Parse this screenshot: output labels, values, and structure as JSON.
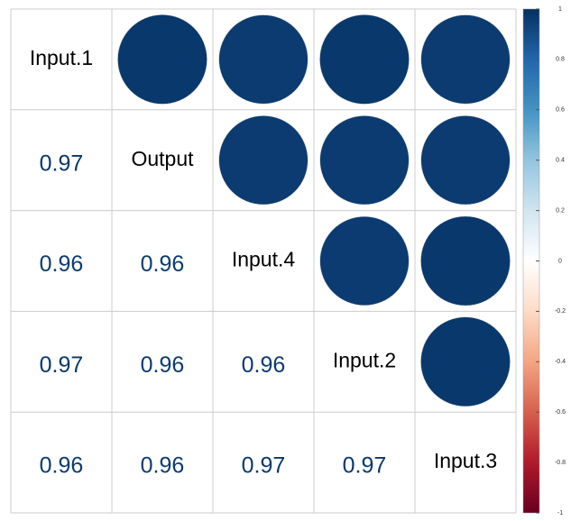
{
  "chart_data": {
    "type": "corrplot",
    "variables": [
      "Input.1",
      "Output",
      "Input.4",
      "Input.2",
      "Input.3"
    ],
    "values": [
      [
        0.97
      ],
      [
        0.96,
        0.96
      ],
      [
        0.97,
        0.96,
        0.96
      ],
      [
        0.96,
        0.96,
        0.97,
        0.97
      ]
    ],
    "colorscale": [
      "#67001F",
      "#B2182B",
      "#D6604D",
      "#F4A582",
      "#FDDBC7",
      "#FFFFFF",
      "#D1E5F0",
      "#92C5DE",
      "#4393C3",
      "#2166AC",
      "#053061"
    ],
    "clim": [
      -1,
      1
    ],
    "cticks": [
      1,
      0.8,
      0.6,
      0.4,
      0.2,
      0,
      -0.2,
      -0.4,
      -0.6,
      -0.8,
      -1
    ]
  }
}
